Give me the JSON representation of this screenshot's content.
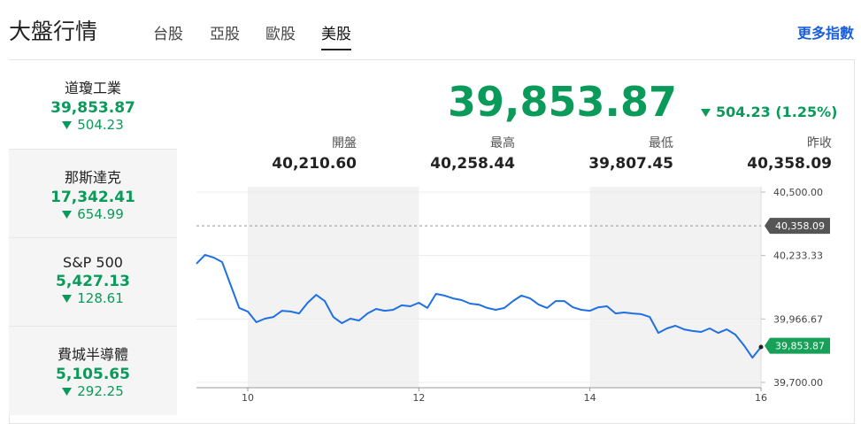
{
  "header": {
    "title": "大盤行情",
    "tabs": [
      "台股",
      "亞股",
      "歐股",
      "美股"
    ],
    "active_tab": 3,
    "more_link": "更多指數"
  },
  "indices": [
    {
      "name": "道瓊工業",
      "value": "39,853.87",
      "change": "504.23"
    },
    {
      "name": "那斯達克",
      "value": "17,342.41",
      "change": "654.99"
    },
    {
      "name": "S&P 500",
      "value": "5,427.13",
      "change": "128.61"
    },
    {
      "name": "費城半導體",
      "value": "5,105.65",
      "change": "292.25"
    }
  ],
  "selected_index": 0,
  "quote": {
    "price": "39,853.87",
    "change": "504.23 (1.25%)",
    "stats": [
      {
        "label": "開盤",
        "value": "40,210.60"
      },
      {
        "label": "最高",
        "value": "40,258.44"
      },
      {
        "label": "最低",
        "value": "39,807.45"
      },
      {
        "label": "昨收",
        "value": "40,358.09"
      }
    ]
  },
  "chart_data": {
    "type": "line",
    "x": [
      9.4,
      9.5,
      9.6,
      9.7,
      9.8,
      9.9,
      10.0,
      10.1,
      10.2,
      10.3,
      10.4,
      10.5,
      10.6,
      10.7,
      10.8,
      10.9,
      11.0,
      11.1,
      11.2,
      11.3,
      11.4,
      11.5,
      11.6,
      11.7,
      11.8,
      11.9,
      12.0,
      12.1,
      12.2,
      12.3,
      12.4,
      12.5,
      12.6,
      12.7,
      12.8,
      12.9,
      13.0,
      13.1,
      13.2,
      13.3,
      13.4,
      13.5,
      13.6,
      13.7,
      13.8,
      13.9,
      14.0,
      14.1,
      14.2,
      14.3,
      14.4,
      14.5,
      14.6,
      14.7,
      14.8,
      14.9,
      15.0,
      15.1,
      15.2,
      15.3,
      15.4,
      15.5,
      15.6,
      15.7,
      15.8,
      15.9,
      16.0
    ],
    "series": [
      {
        "color": "#1f6fe5",
        "values": [
          40199,
          40236,
          40225,
          40206,
          40109,
          40013,
          39998,
          39953,
          39968,
          39975,
          40001,
          39998,
          39990,
          40035,
          40068,
          40042,
          39975,
          39949,
          39968,
          39960,
          39990,
          40009,
          40001,
          40005,
          40024,
          40020,
          40035,
          40013,
          40072,
          40065,
          40053,
          40046,
          40031,
          40027,
          40013,
          40005,
          40013,
          40042,
          40065,
          40053,
          40027,
          40013,
          40042,
          40042,
          40016,
          40005,
          40001,
          40016,
          40020,
          39990,
          39994,
          39990,
          39987,
          39975,
          39908,
          39927,
          39938,
          39923,
          39916,
          39912,
          39927,
          39908,
          39923,
          39901,
          39856,
          39804,
          39849
        ]
      }
    ],
    "xlim": [
      9.4,
      16
    ],
    "xticks": [
      10,
      12,
      14,
      16
    ],
    "ylim": [
      39700,
      40500
    ],
    "yticks": [
      {
        "value": 40500,
        "label": "40,500.00"
      },
      {
        "value": 40233.33,
        "label": "40,233.33"
      },
      {
        "value": 39966.67,
        "label": "39,966.67"
      },
      {
        "value": 39700,
        "label": "39,700.00"
      }
    ],
    "reference": {
      "value": 40358.09,
      "label": "40,358.09",
      "color": "#555555"
    },
    "last": {
      "value": 39853.87,
      "label": "39,853.87",
      "color": "#18a058"
    },
    "grid": true
  }
}
